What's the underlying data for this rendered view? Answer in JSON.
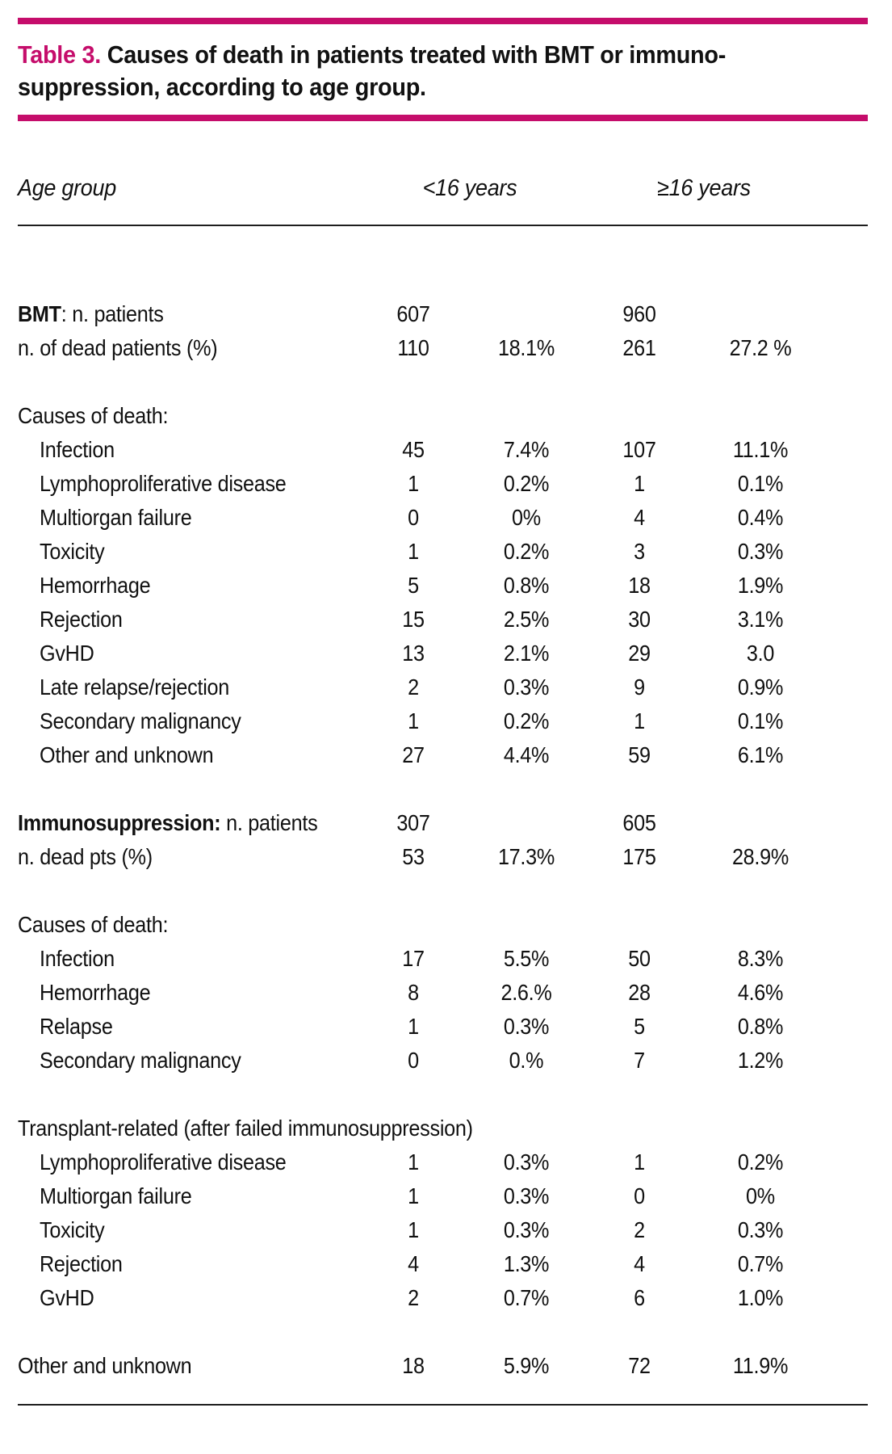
{
  "title": {
    "label": "Table 3.",
    "line1": " Causes of death in patients treated with BMT or immuno-",
    "line2": "suppression, according to age group."
  },
  "header": {
    "age_group": "Age group",
    "group1": "<16 years",
    "group2": "≥16 years"
  },
  "colors": {
    "accent": "#C50D6B",
    "text": "#111111",
    "rule": "#1e1e1e",
    "background": "#ffffff"
  },
  "table": {
    "rows": [
      {
        "bold": "BMT",
        "rest": ": n. patients",
        "indent": 0,
        "c": [
          "607",
          "",
          "960",
          ""
        ]
      },
      {
        "rest": "n. of dead patients (%)",
        "indent": 0,
        "c": [
          "110",
          "18.1%",
          "261",
          "27.2 %"
        ]
      },
      {
        "spacer": true
      },
      {
        "rest": "Causes of death:",
        "indent": 0,
        "c": [
          "",
          "",
          "",
          ""
        ]
      },
      {
        "rest": "Infection",
        "indent": 1,
        "c": [
          "45",
          "7.4%",
          "107",
          "11.1%"
        ]
      },
      {
        "rest": "Lymphoproliferative disease",
        "indent": 1,
        "c": [
          "1",
          "0.2%",
          "1",
          "0.1%"
        ]
      },
      {
        "rest": "Multiorgan failure",
        "indent": 1,
        "c": [
          "0",
          "0%",
          "4",
          "0.4%"
        ]
      },
      {
        "rest": "Toxicity",
        "indent": 1,
        "c": [
          "1",
          "0.2%",
          "3",
          "0.3%"
        ]
      },
      {
        "rest": "Hemorrhage",
        "indent": 1,
        "c": [
          "5",
          "0.8%",
          "18",
          "1.9%"
        ]
      },
      {
        "rest": "Rejection",
        "indent": 1,
        "c": [
          "15",
          "2.5%",
          "30",
          "3.1%"
        ]
      },
      {
        "rest": "GvHD",
        "indent": 1,
        "c": [
          "13",
          "2.1%",
          "29",
          "3.0"
        ]
      },
      {
        "rest": "Late relapse/rejection",
        "indent": 1,
        "c": [
          "2",
          "0.3%",
          "9",
          "0.9%"
        ]
      },
      {
        "rest": "Secondary malignancy",
        "indent": 1,
        "c": [
          "1",
          "0.2%",
          "1",
          "0.1%"
        ]
      },
      {
        "rest": "Other and unknown",
        "indent": 1,
        "c": [
          "27",
          "4.4%",
          "59",
          "6.1%"
        ]
      },
      {
        "spacer": true
      },
      {
        "bold": "Immunosuppression:",
        "rest": " n. patients",
        "indent": 0,
        "c": [
          "307",
          "",
          "605",
          ""
        ]
      },
      {
        "rest": "n. dead pts (%)",
        "indent": 0,
        "c": [
          "53",
          "17.3%",
          "175",
          "28.9%"
        ]
      },
      {
        "spacer": true
      },
      {
        "rest": "Causes of death:",
        "indent": 0,
        "c": [
          "",
          "",
          "",
          ""
        ]
      },
      {
        "rest": "Infection",
        "indent": 1,
        "c": [
          "17",
          "5.5%",
          "50",
          "8.3%"
        ]
      },
      {
        "rest": "Hemorrhage",
        "indent": 1,
        "c": [
          "8",
          "2.6.%",
          "28",
          "4.6%"
        ]
      },
      {
        "rest": "Relapse",
        "indent": 1,
        "c": [
          "1",
          "0.3%",
          "5",
          "0.8%"
        ]
      },
      {
        "rest": "Secondary malignancy",
        "indent": 1,
        "c": [
          "0",
          "0.%",
          "7",
          "1.2%"
        ]
      },
      {
        "spacer": true
      },
      {
        "rest": "Transplant-related (after failed immunosuppression)",
        "indent": 0,
        "c": [
          "",
          "",
          "",
          ""
        ]
      },
      {
        "rest": "Lymphoproliferative disease",
        "indent": 1,
        "c": [
          "1",
          "0.3%",
          "1",
          "0.2%"
        ]
      },
      {
        "rest": "Multiorgan failure",
        "indent": 1,
        "c": [
          "1",
          "0.3%",
          "0",
          "0%"
        ]
      },
      {
        "rest": "Toxicity",
        "indent": 1,
        "c": [
          "1",
          "0.3%",
          "2",
          "0.3%"
        ]
      },
      {
        "rest": "Rejection",
        "indent": 1,
        "c": [
          "4",
          "1.3%",
          "4",
          "0.7%"
        ]
      },
      {
        "rest": "GvHD",
        "indent": 1,
        "c": [
          "2",
          "0.7%",
          "6",
          "1.0%"
        ]
      },
      {
        "spacer": true
      },
      {
        "rest": "Other and unknown",
        "indent": 0,
        "c": [
          "18",
          "5.9%",
          "72",
          "11.9%"
        ]
      }
    ]
  }
}
